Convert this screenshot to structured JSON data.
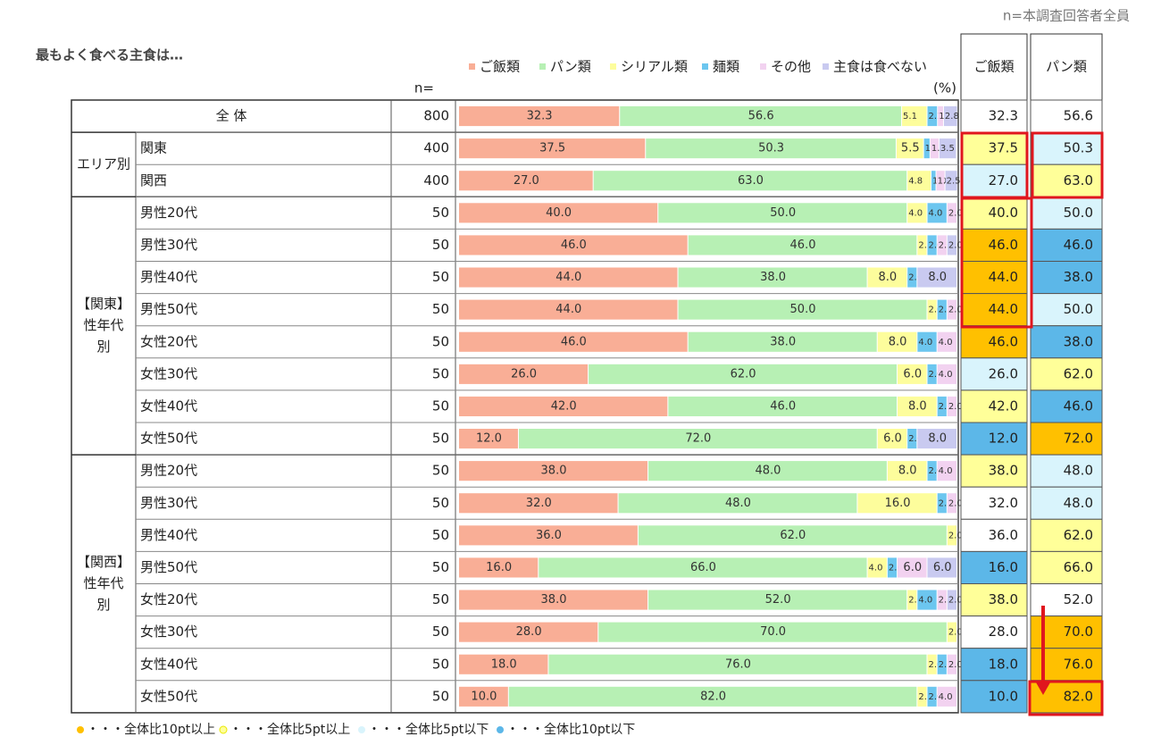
{
  "header": {
    "note": "n=本調査回答者全員",
    "title": "最もよく食べる主食は…",
    "n_label": "n=",
    "unit": "(%)"
  },
  "chart_data": {
    "type": "stacked-bar",
    "categories": [
      "全 体",
      "関東",
      "関西",
      "男性20代",
      "男性30代",
      "男性40代",
      "男性50代",
      "女性20代",
      "女性30代",
      "女性40代",
      "女性50代",
      "男性20代",
      "男性30代",
      "男性40代",
      "男性50代",
      "女性20代",
      "女性30代",
      "女性40代",
      "女性50代"
    ],
    "groups": [
      [
        "エリア別"
      ],
      [
        "【関東】",
        "性年代",
        "別"
      ],
      [
        "【関西】",
        "性年代",
        "別"
      ]
    ],
    "row_groups": [
      null,
      0,
      0,
      1,
      1,
      1,
      1,
      1,
      1,
      1,
      1,
      2,
      2,
      2,
      2,
      2,
      2,
      2,
      2
    ],
    "n": [
      800,
      400,
      400,
      50,
      50,
      50,
      50,
      50,
      50,
      50,
      50,
      50,
      50,
      50,
      50,
      50,
      50,
      50,
      50
    ],
    "xlim": [
      0,
      100
    ],
    "series": [
      {
        "name": "ご飯類",
        "color": "#f9ae96",
        "values": [
          32.3,
          37.5,
          27,
          40,
          46,
          44,
          44,
          46,
          26,
          42,
          12,
          38,
          32,
          36,
          16,
          38,
          28,
          18,
          10
        ],
        "value_labels": [
          "32.3",
          "37.5",
          "27.0",
          "40.0",
          "46.0",
          "44.0",
          "44.0",
          "46.0",
          "26.0",
          "42.0",
          "12.0",
          "38.0",
          "32.0",
          "36.0",
          "16.0",
          "38.0",
          "28.0",
          "18.0",
          "10.0"
        ]
      },
      {
        "name": "パン類",
        "color": "#b7f0b4",
        "values": [
          56.6,
          50.3,
          63,
          50,
          46,
          38,
          50,
          38,
          62,
          46,
          72,
          48,
          48,
          62,
          66,
          52,
          70,
          76,
          82
        ],
        "value_labels": [
          "56.6",
          "50.3",
          "63.0",
          "50.0",
          "46.0",
          "38.0",
          "50.0",
          "38.0",
          "62.0",
          "46.0",
          "72.0",
          "48.0",
          "48.0",
          "62.0",
          "66.0",
          "52.0",
          "70.0",
          "76.0",
          "82.0"
        ]
      },
      {
        "name": "シリアル類",
        "color": "#fdfd9c",
        "values": [
          5.1,
          5.5,
          4.8,
          4,
          2,
          8,
          2,
          8,
          6,
          8,
          6,
          8,
          16,
          2,
          4,
          2,
          2,
          2,
          2
        ],
        "value_labels": [
          "5.1",
          "5.5",
          "4.8",
          "4.0",
          "2.0",
          "8.0",
          "2.0",
          "8.0",
          "6.0",
          "8.0",
          "6.0",
          "8.0",
          "16.0",
          "2.0",
          "4.0",
          "2.0",
          "2.0",
          "2.0",
          "2.0"
        ]
      },
      {
        "name": "麺類",
        "color": "#6cc6ef",
        "values": [
          2.1,
          1.3,
          1,
          4,
          2,
          2,
          2,
          4,
          2,
          2,
          2,
          2,
          2,
          0,
          2,
          4,
          0,
          2,
          2
        ],
        "value_labels": [
          "2.1",
          "1.3",
          "1.0",
          "4.0",
          "2.0",
          "2.0",
          "2.0",
          "4.0",
          "2.0",
          "2.0",
          "2.0",
          "2.0",
          "2.0",
          null,
          "2.0",
          "4.0",
          null,
          "2.0",
          "2.0"
        ]
      },
      {
        "name": "その他",
        "color": "#f2d2f0",
        "values": [
          1.2,
          1.8,
          1.8,
          2,
          2,
          0,
          2,
          4,
          4,
          2,
          0,
          4,
          2,
          0,
          6,
          2,
          0,
          2,
          4
        ],
        "value_labels": [
          "1.2",
          "1.8",
          "1.8",
          "2.0",
          "2.0",
          null,
          "2.0",
          "4.0",
          "4.0",
          "2.0",
          null,
          "4.0",
          "2.0",
          null,
          "6.0",
          "2.0",
          null,
          "2.0",
          "4.0"
        ]
      },
      {
        "name": "主食は食べない",
        "color": "#c9caf0",
        "values": [
          2.8,
          3.5,
          2.5,
          0,
          2,
          8,
          0,
          0,
          0,
          0,
          8,
          0,
          0,
          0,
          6,
          2,
          0,
          0,
          0
        ],
        "value_labels": [
          "2.8",
          "3.5",
          "2.5",
          null,
          "2.0",
          "8.0",
          null,
          null,
          null,
          null,
          "8.0",
          null,
          null,
          null,
          "6.0",
          "2.0",
          null,
          null,
          null
        ]
      }
    ]
  },
  "table": {
    "columns": [
      "ご飯類",
      "パン類"
    ],
    "levels": [
      [
        null,
        1,
        2,
        1,
        0,
        0,
        0,
        0,
        2,
        1,
        3,
        1,
        null,
        null,
        3,
        1,
        null,
        3,
        3
      ],
      [
        null,
        2,
        1,
        2,
        3,
        3,
        2,
        3,
        1,
        3,
        0,
        2,
        2,
        1,
        1,
        null,
        0,
        0,
        0
      ]
    ]
  },
  "highlight_legend": [
    {
      "color": "#ffc000",
      "label": "・・・全体比10pt以上"
    },
    {
      "color": "#ffff99",
      "label": "・・・全体比5pt以上"
    },
    {
      "color": "#d9f4fc",
      "label": "・・・全体比5pt以下"
    },
    {
      "color": "#5cb7e8",
      "label": "・・・全体比10pt以下"
    }
  ]
}
